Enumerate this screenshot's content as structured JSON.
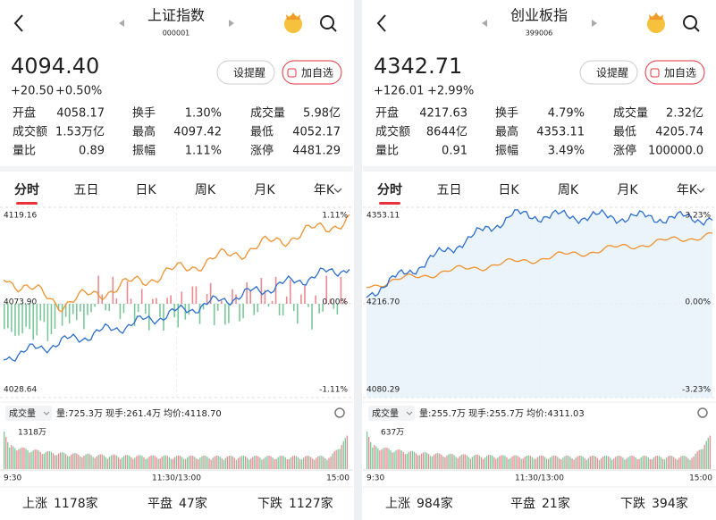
{
  "panels": [
    {
      "header": {
        "title": "上证指数",
        "code": "000001"
      },
      "quote": {
        "price": "4094.40",
        "change": "+20.50",
        "change_pct": "+0.50%"
      },
      "buttons": [
        "设提醒",
        "加自选"
      ],
      "stats": [
        {
          "label": "开盘",
          "value": "4058.17",
          "tone": "down"
        },
        {
          "label": "换手",
          "value": "1.30%",
          "tone": "flat"
        },
        {
          "label": "成交量",
          "value": "5.98亿",
          "tone": "flat"
        },
        {
          "label": "成交额",
          "value": "1.53万亿",
          "tone": "flat"
        },
        {
          "label": "最高",
          "value": "4097.42",
          "tone": "up"
        },
        {
          "label": "最低",
          "value": "4052.17",
          "tone": "down"
        },
        {
          "label": "量比",
          "value": "0.89",
          "tone": "flat"
        },
        {
          "label": "振幅",
          "value": "1.11%",
          "tone": "flat"
        },
        {
          "label": "涨停",
          "value": "4481.29",
          "tone": "up"
        }
      ],
      "tabs": [
        "分时",
        "五日",
        "日K",
        "周K",
        "月K",
        "年K"
      ],
      "chart": {
        "high": "4119.16",
        "mid": "4073.90",
        "low": "4028.64",
        "pct_high": "1.11%",
        "pct_mid": "0.00%",
        "pct_low": "-1.11%",
        "style": "bars"
      },
      "volume": {
        "label": "成交量",
        "amount": "量:725.3万",
        "current": "现手:261.4万",
        "avg": "均价:4118.70",
        "max": "1318万",
        "times": [
          "9:30",
          "11:30/13:00",
          "15:00"
        ]
      },
      "breadth": [
        {
          "label": "上涨",
          "value": "1178家"
        },
        {
          "label": "平盘",
          "value": "47家"
        },
        {
          "label": "下跌",
          "value": "1127家"
        }
      ]
    },
    {
      "header": {
        "title": "创业板指",
        "code": "399006"
      },
      "quote": {
        "price": "4342.71",
        "change": "+126.01",
        "change_pct": "+2.99%"
      },
      "buttons": [
        "设提醒",
        "加自选"
      ],
      "stats": [
        {
          "label": "开盘",
          "value": "4217.63",
          "tone": "up"
        },
        {
          "label": "换手",
          "value": "4.79%",
          "tone": "flat"
        },
        {
          "label": "成交量",
          "value": "2.32亿",
          "tone": "flat"
        },
        {
          "label": "成交额",
          "value": "8644亿",
          "tone": "flat"
        },
        {
          "label": "最高",
          "value": "4353.11",
          "tone": "up"
        },
        {
          "label": "最低",
          "value": "4205.74",
          "tone": "down"
        },
        {
          "label": "量比",
          "value": "0.91",
          "tone": "flat"
        },
        {
          "label": "振幅",
          "value": "3.49%",
          "tone": "flat"
        },
        {
          "label": "涨停",
          "value": "100000.0",
          "tone": "up"
        }
      ],
      "tabs": [
        "分时",
        "五日",
        "日K",
        "周K",
        "月K",
        "年K"
      ],
      "chart": {
        "high": "4353.11",
        "mid": "4216.70",
        "low": "4080.29",
        "pct_high": "3.23%",
        "pct_mid": "0.00%",
        "pct_low": "-3.23%",
        "style": "area"
      },
      "volume": {
        "label": "成交量",
        "amount": "量:255.7万",
        "current": "现手:255.7万",
        "avg": "均价:4311.03",
        "max": "637万",
        "times": [
          "9:30",
          "11:30/13:00",
          "15:00"
        ]
      },
      "breadth": [
        {
          "label": "上涨",
          "value": "984家"
        },
        {
          "label": "平盘",
          "value": "21家"
        },
        {
          "label": "下跌",
          "value": "394家"
        }
      ]
    }
  ]
}
